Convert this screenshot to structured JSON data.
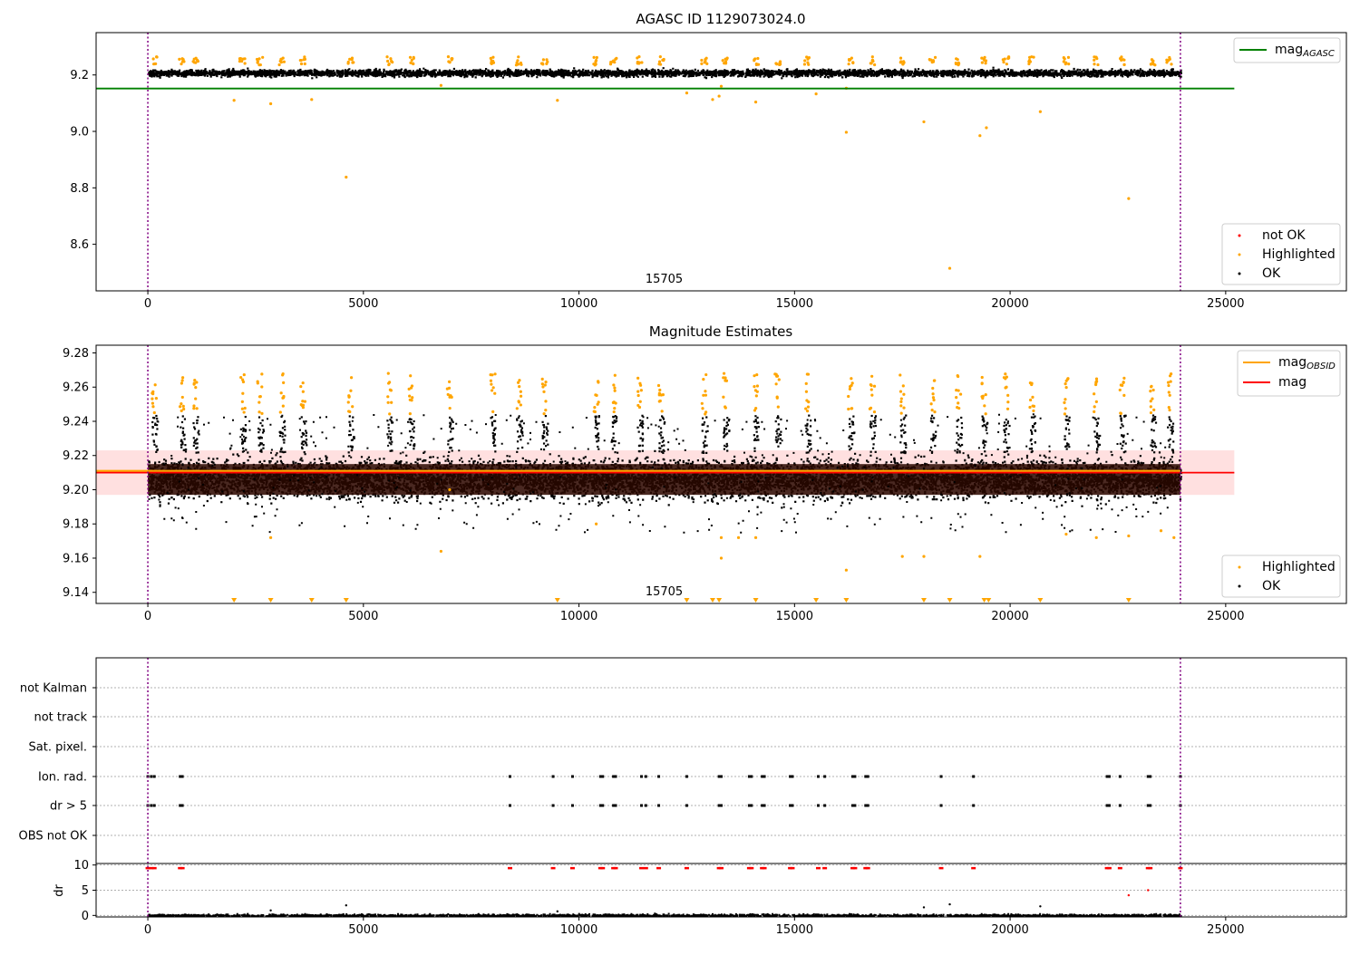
{
  "chart_data": [
    {
      "type": "scatter",
      "title": "AGASC ID 1129073024.0",
      "xlim": [
        -1200,
        27800
      ],
      "ylim": [
        8.435,
        9.35
      ],
      "xticks": [
        0,
        5000,
        10000,
        15000,
        20000,
        25000
      ],
      "yticks": [
        8.6,
        8.8,
        9.0,
        9.2
      ],
      "obs_boundaries": [
        0,
        23950
      ],
      "obsid_label": "15705",
      "obsid_label_x": 11950,
      "mag_agasc": 9.152,
      "mag_agasc_range": [
        -1200,
        25200
      ],
      "series": [
        {
          "name": "not OK",
          "color": "#ff0000",
          "points": []
        },
        {
          "name": "Highlighted",
          "color": "#ffa500",
          "points": [
            [
              2000,
              9.11
            ],
            [
              2850,
              9.098
            ],
            [
              3800,
              9.113
            ],
            [
              4600,
              8.838
            ],
            [
              9500,
              9.11
            ],
            [
              12500,
              9.136
            ],
            [
              13100,
              9.113
            ],
            [
              13250,
              9.125
            ],
            [
              14100,
              9.104
            ],
            [
              15500,
              9.133
            ],
            [
              16200,
              8.997
            ],
            [
              16200,
              9.153
            ],
            [
              18000,
              9.034
            ],
            [
              18600,
              8.515
            ],
            [
              19300,
              8.985
            ],
            [
              19450,
              9.013
            ],
            [
              20700,
              9.07
            ],
            [
              22750,
              8.762
            ],
            [
              13300,
              9.16
            ],
            [
              6800,
              9.163
            ]
          ]
        },
        {
          "name": "OK",
          "color": "#000000",
          "points": []
        }
      ],
      "band": {
        "mean": 9.21,
        "low": 9.18,
        "high": 9.24
      },
      "peak_x": [
        150,
        800,
        1100,
        2200,
        2600,
        3100,
        3600,
        4700,
        5600,
        6100,
        7000,
        8000,
        8600,
        9200,
        10400,
        10800,
        11400,
        11900,
        12900,
        13400,
        14100,
        14600,
        15300,
        16300,
        16800,
        17500,
        18200,
        18800,
        19400,
        19900,
        20500,
        21300,
        22000,
        22600,
        23300,
        23700
      ]
    },
    {
      "type": "scatter",
      "title": "Magnitude Estimates",
      "xlim": [
        -1200,
        27800
      ],
      "ylim": [
        9.1335,
        9.2845
      ],
      "xticks": [
        0,
        5000,
        10000,
        15000,
        20000,
        25000
      ],
      "yticks": [
        9.14,
        9.16,
        9.18,
        9.2,
        9.22,
        9.24,
        9.26,
        9.28
      ],
      "obs_boundaries": [
        0,
        23950
      ],
      "obsid_label": "15705",
      "obsid_label_x": 11950,
      "mag_obsid": 9.211,
      "mag": 9.21,
      "mag_band": [
        9.197,
        9.223
      ],
      "mag_range": [
        -1200,
        25200
      ],
      "series": [
        {
          "name": "Highlighted",
          "color": "#ffa500",
          "points": [
            [
              2850,
              9.172
            ],
            [
              6800,
              9.164
            ],
            [
              13300,
              9.16
            ],
            [
              13300,
              9.172
            ],
            [
              13700,
              9.172
            ],
            [
              14100,
              9.172
            ],
            [
              16200,
              9.153
            ],
            [
              17500,
              9.161
            ],
            [
              18000,
              9.161
            ],
            [
              19300,
              9.161
            ],
            [
              21300,
              9.174
            ],
            [
              22000,
              9.172
            ],
            [
              22750,
              9.173
            ],
            [
              23500,
              9.176
            ],
            [
              23800,
              9.172
            ],
            [
              10400,
              9.18
            ],
            [
              7000,
              9.2
            ]
          ]
        },
        {
          "name": "OK",
          "color": "#000000",
          "points": []
        }
      ],
      "clipped_low_x": [
        2000,
        2850,
        3800,
        4600,
        9500,
        12500,
        13100,
        13250,
        14100,
        15500,
        16200,
        18000,
        18600,
        19400,
        19500,
        20700,
        22750
      ],
      "peak_x": [
        150,
        800,
        1100,
        2200,
        2600,
        3100,
        3600,
        4700,
        5600,
        6100,
        7000,
        8000,
        8600,
        9200,
        10400,
        10800,
        11400,
        11900,
        12900,
        13400,
        14100,
        14600,
        15300,
        16300,
        16800,
        17500,
        18200,
        18800,
        19400,
        19900,
        20500,
        21300,
        22000,
        22600,
        23300,
        23700
      ]
    },
    {
      "type": "scatter",
      "xlim": [
        -1200,
        27800
      ],
      "xticks": [
        0,
        5000,
        10000,
        15000,
        20000,
        25000
      ],
      "obs_boundaries": [
        0,
        23950
      ],
      "flag_rows": [
        "not Kalman",
        "not track",
        "Sat. pixel.",
        "Ion. rad.",
        "dr > 5",
        "OBS not OK"
      ],
      "flag_events_x": [
        0,
        80,
        150,
        750,
        800,
        8400,
        9400,
        9850,
        10500,
        10550,
        10800,
        10850,
        11450,
        11550,
        11850,
        12500,
        13250,
        13300,
        13950,
        14000,
        14250,
        14300,
        14900,
        14950,
        15550,
        15700,
        16350,
        16400,
        16650,
        16700,
        18400,
        19150,
        22250,
        22300,
        22550,
        23200,
        23250,
        23950
      ],
      "dr_ylabel": "dr",
      "dr_ylim": [
        -0.3,
        10.3
      ],
      "dr_yticks": [
        0,
        5,
        10
      ],
      "dr_outliers": [
        [
          4600,
          2.0
        ],
        [
          18000,
          1.6
        ],
        [
          18600,
          2.2
        ],
        [
          20700,
          1.8
        ],
        [
          22750,
          4.0
        ],
        [
          23200,
          5.0
        ],
        [
          2850,
          1.0
        ],
        [
          9500,
          0.8
        ]
      ]
    }
  ]
}
